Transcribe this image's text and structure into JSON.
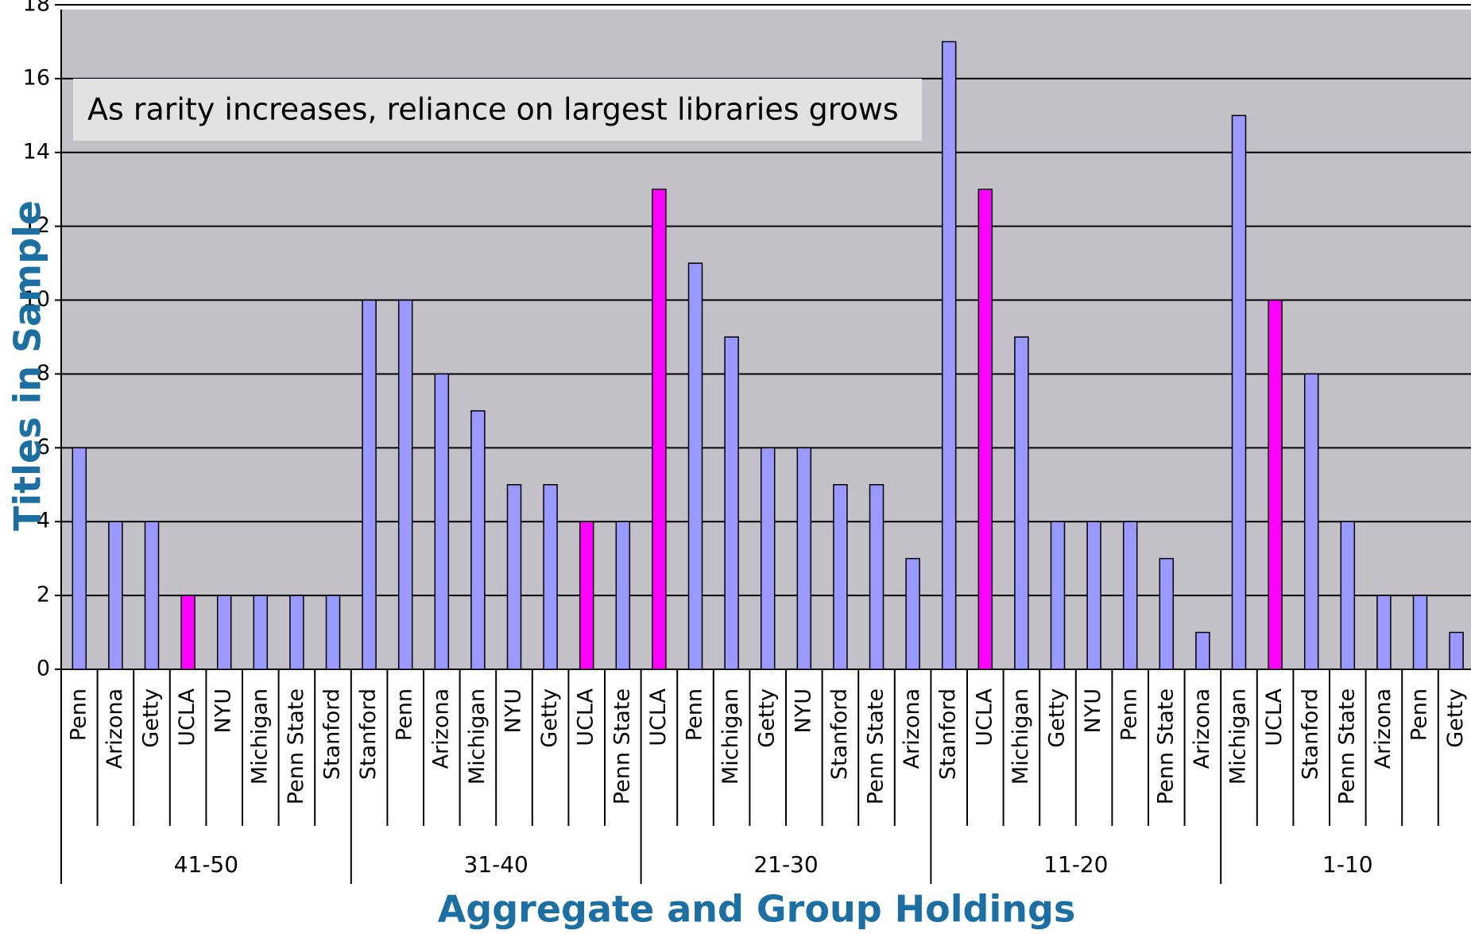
{
  "chart_data": {
    "type": "bar",
    "y_label": "Titles in Sample",
    "x_label": "Aggregate and Group Holdings",
    "annotation": "As rarity increases, reliance on largest libraries grows",
    "ylim": [
      0,
      18
    ],
    "yticks": [
      0,
      2,
      4,
      6,
      8,
      10,
      12,
      14,
      16,
      18
    ],
    "grid": true,
    "groups": [
      {
        "label": "41-50",
        "categories": [
          "Penn",
          "Arizona",
          "Getty",
          "UCLA",
          "NYU",
          "Michigan",
          "Penn State",
          "Stanford"
        ],
        "values": [
          6,
          4,
          4,
          2,
          2,
          2,
          2,
          2
        ],
        "colors": [
          "#9999ff",
          "#9999ff",
          "#9999ff",
          "#ff00ff",
          "#9999ff",
          "#9999ff",
          "#9999ff",
          "#9999ff"
        ]
      },
      {
        "label": "31-40",
        "categories": [
          "Stanford",
          "Penn",
          "Arizona",
          "Michigan",
          "NYU",
          "Getty",
          "UCLA",
          "Penn State"
        ],
        "values": [
          10,
          10,
          8,
          7,
          5,
          5,
          4,
          4
        ],
        "colors": [
          "#9999ff",
          "#9999ff",
          "#9999ff",
          "#9999ff",
          "#9999ff",
          "#9999ff",
          "#ff00ff",
          "#9999ff"
        ]
      },
      {
        "label": "21-30",
        "categories": [
          "UCLA",
          "Penn",
          "Michigan",
          "Getty",
          "NYU",
          "Stanford",
          "Penn State",
          "Arizona"
        ],
        "values": [
          13,
          11,
          9,
          6,
          6,
          5,
          5,
          3
        ],
        "colors": [
          "#ff00ff",
          "#9999ff",
          "#9999ff",
          "#9999ff",
          "#9999ff",
          "#9999ff",
          "#9999ff",
          "#9999ff"
        ]
      },
      {
        "label": "11-20",
        "categories": [
          "Stanford",
          "UCLA",
          "Michigan",
          "Getty",
          "NYU",
          "Penn",
          "Penn State",
          "Arizona"
        ],
        "values": [
          17,
          13,
          9,
          4,
          4,
          4,
          3,
          1
        ],
        "colors": [
          "#9999ff",
          "#ff00ff",
          "#9999ff",
          "#9999ff",
          "#9999ff",
          "#9999ff",
          "#9999ff",
          "#9999ff"
        ]
      },
      {
        "label": "1-10",
        "categories": [
          "Michigan",
          "UCLA",
          "Stanford",
          "Penn State",
          "Arizona",
          "Penn",
          "Getty"
        ],
        "values": [
          15,
          10,
          8,
          4,
          2,
          2,
          1
        ],
        "colors": [
          "#9999ff",
          "#ff00ff",
          "#9999ff",
          "#9999ff",
          "#9999ff",
          "#9999ff",
          "#9999ff"
        ]
      }
    ]
  }
}
